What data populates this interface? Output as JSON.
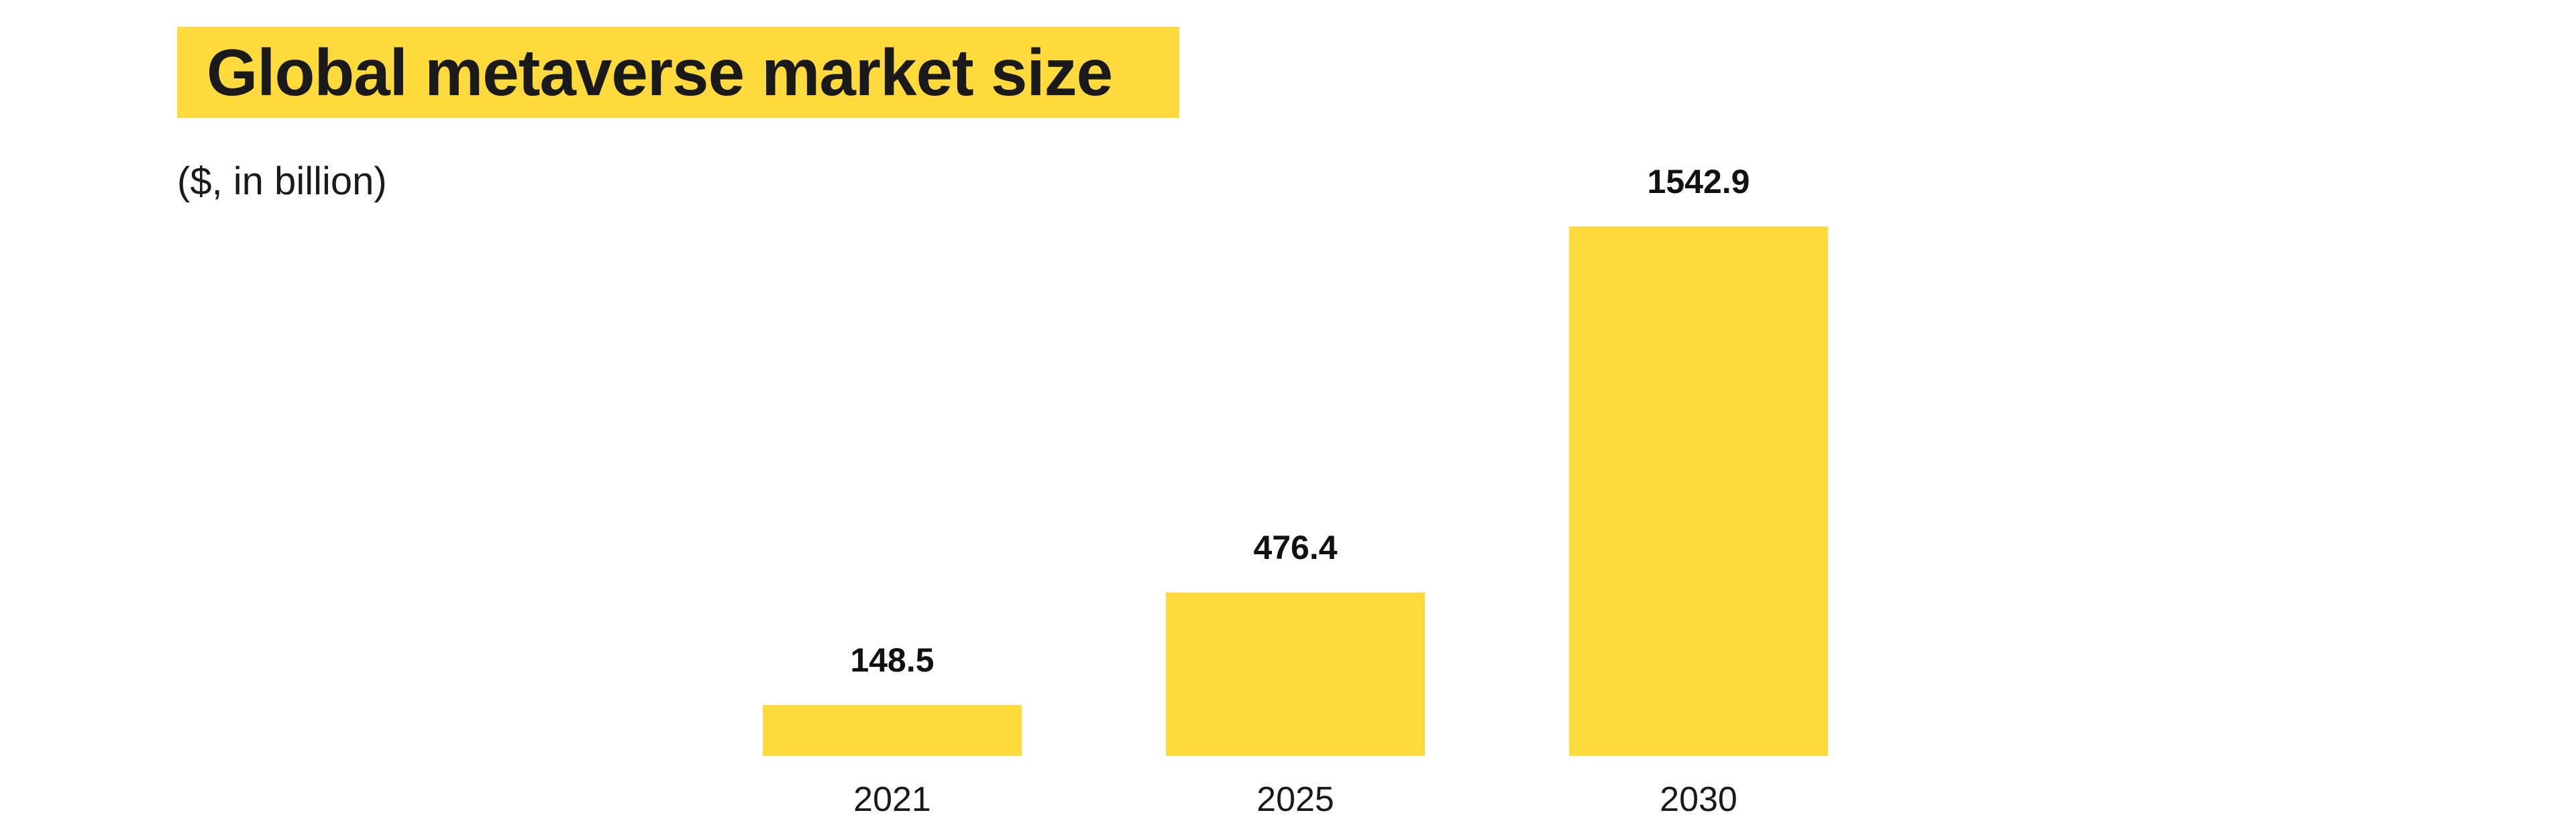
{
  "chart_data": {
    "type": "bar",
    "title": "Global metaverse market size",
    "ylabel": "($, in billion)",
    "xlabel": "",
    "categories": [
      "2021",
      "2025",
      "2030"
    ],
    "values": [
      148.5,
      476.4,
      1542.9
    ],
    "value_labels": [
      "148.5",
      "476.4",
      "1542.9"
    ],
    "ylim": [
      0,
      1542.9
    ],
    "grid": false,
    "bar_color": "#FFDA3C"
  }
}
